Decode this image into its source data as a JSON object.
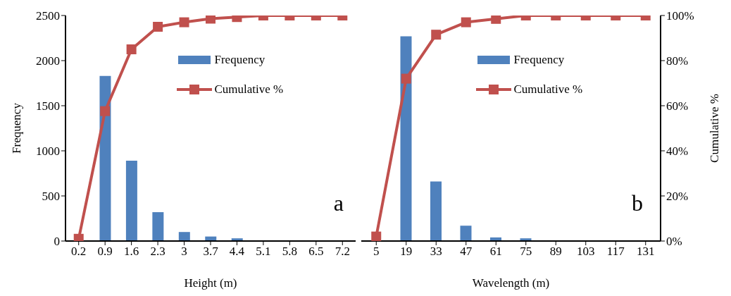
{
  "chart_data": [
    {
      "type": "bar",
      "categories": [
        "0.2",
        "0.9",
        "1.6",
        "2.3",
        "3",
        "3.7",
        "4.4",
        "5.1",
        "5.8",
        "6.5",
        "7.2"
      ],
      "xlabel": "Height (m)",
      "ylabel": "Frequency",
      "ylim": [
        0,
        2500
      ],
      "yticks": [
        0,
        500,
        1000,
        1500,
        2000,
        2500
      ],
      "y2lim": [
        0,
        100
      ],
      "legend": "top",
      "marker": "square",
      "annotations": [
        "a"
      ],
      "series": [
        {
          "name": "Frequency",
          "color": "#4f81bd",
          "values": [
            0,
            1830,
            890,
            320,
            100,
            50,
            30,
            0,
            0,
            0,
            0
          ]
        },
        {
          "name": "Cumulative %",
          "type": "line",
          "axis": "y2",
          "color": "#c0504d",
          "values": [
            1,
            57.6,
            85,
            95,
            97,
            98.6,
            99.3,
            100,
            100,
            100,
            100
          ]
        }
      ]
    },
    {
      "type": "bar",
      "categories": [
        "5",
        "19",
        "33",
        "47",
        "61",
        "75",
        "89",
        "103",
        "117",
        "131"
      ],
      "xlabel": "Wavelength (m)",
      "y2label": "Cumulative %",
      "ylim": [
        0,
        2500
      ],
      "y2lim": [
        0,
        100
      ],
      "y2ticks": [
        {
          "value": 0,
          "label": "0%"
        },
        {
          "value": 20,
          "label": "20%"
        },
        {
          "value": 40,
          "label": "40%"
        },
        {
          "value": 60,
          "label": "60%"
        },
        {
          "value": 80,
          "label": "80%"
        },
        {
          "value": 100,
          "label": "100%"
        }
      ],
      "legend": "top",
      "marker": "square",
      "annotations": [
        "b"
      ],
      "series": [
        {
          "name": "Frequency",
          "color": "#4f81bd",
          "values": [
            0,
            2270,
            660,
            170,
            40,
            30,
            0,
            0,
            0,
            0
          ]
        },
        {
          "name": "Cumulative %",
          "type": "line",
          "axis": "y2",
          "color": "#c0504d",
          "values": [
            2,
            72,
            91.5,
            97,
            98.5,
            100,
            100,
            100,
            100,
            100
          ]
        }
      ]
    }
  ]
}
